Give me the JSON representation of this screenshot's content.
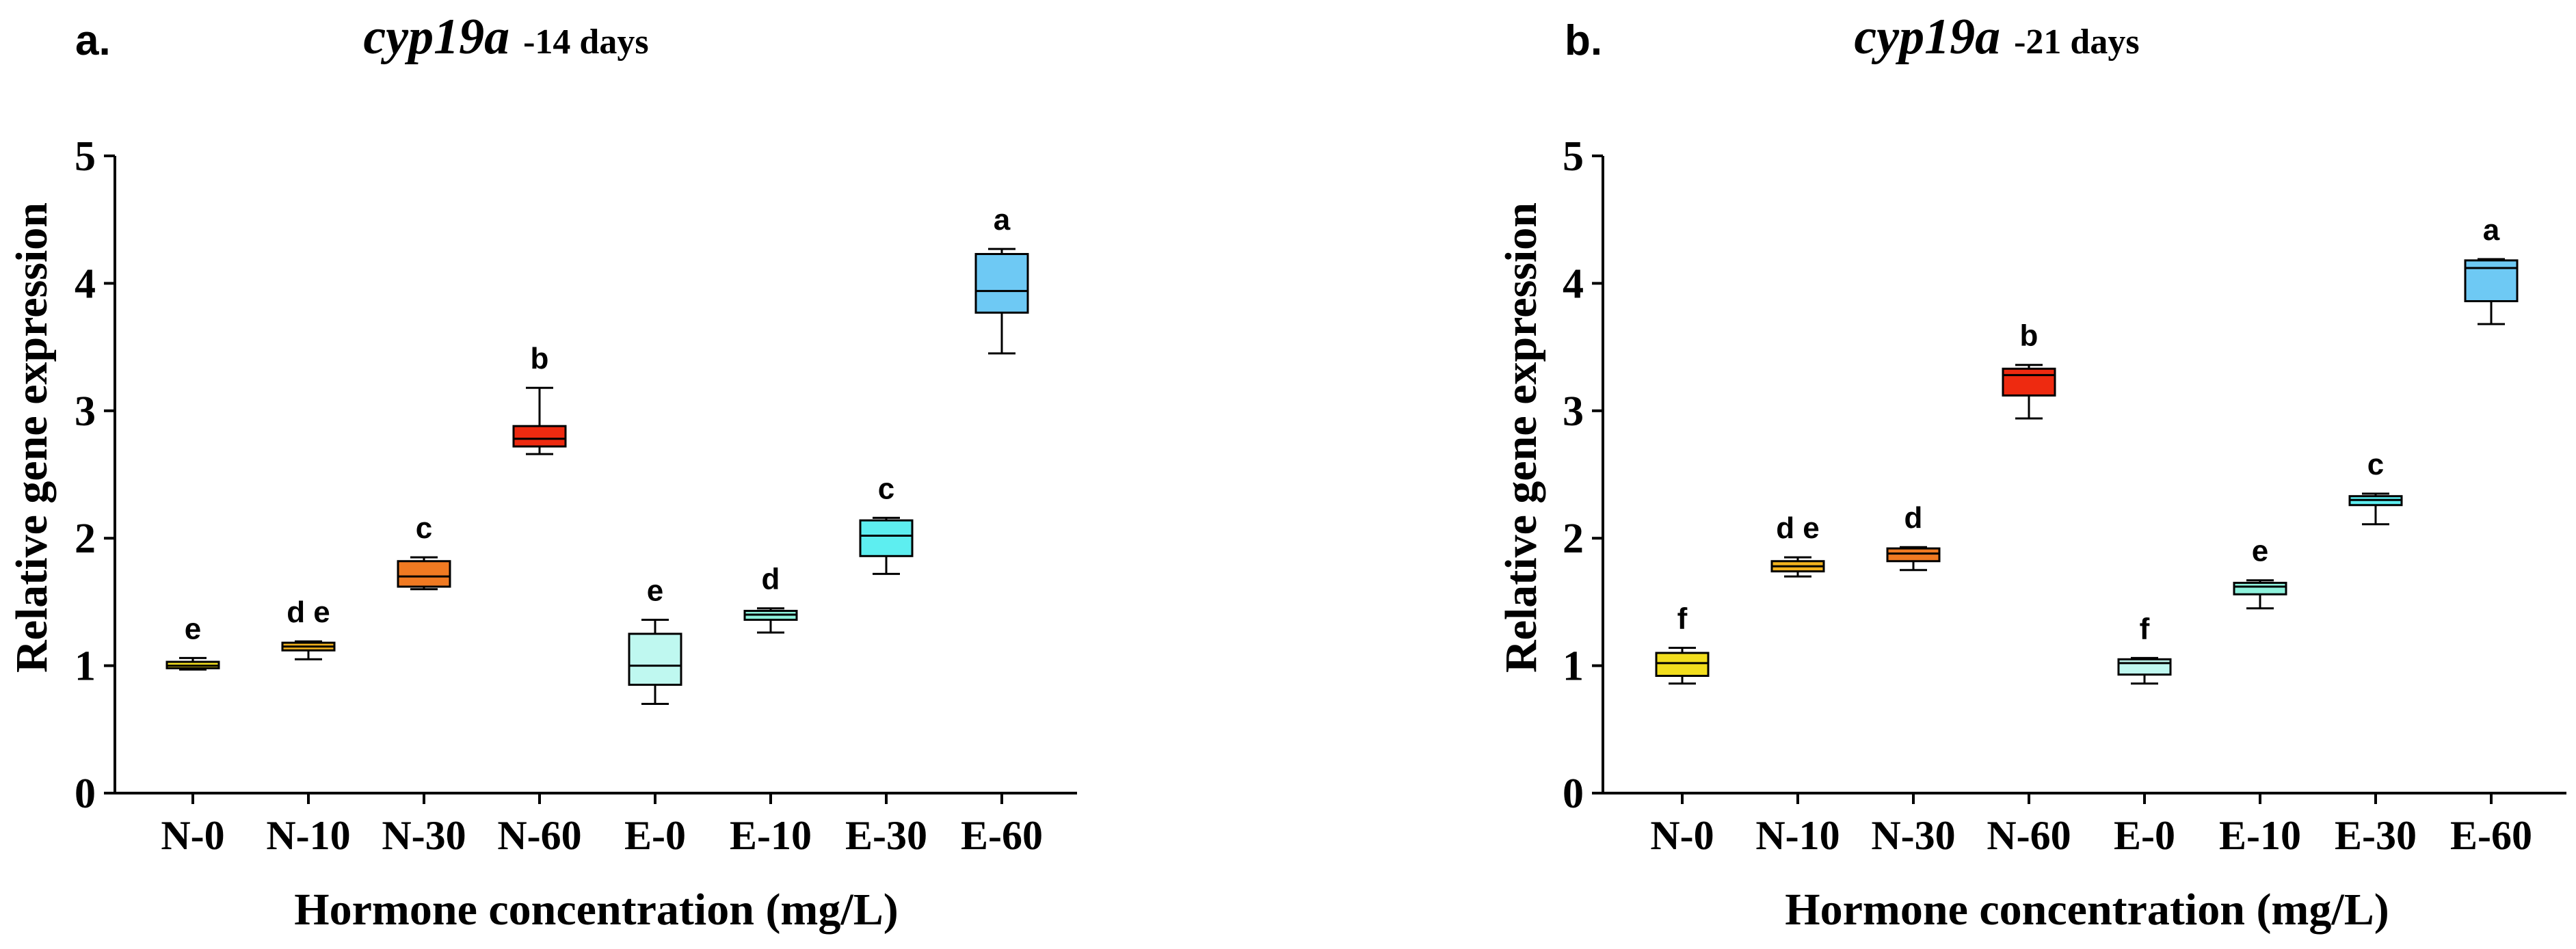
{
  "chart_data": [
    {
      "type": "box",
      "panel": "a.",
      "title": "cyp19a",
      "subtitle": "-14 days",
      "xlabel": "Hormone concentration (mg/L)",
      "ylabel": "Relative gene expression",
      "ylim": [
        0,
        5
      ],
      "yticks": [
        "0",
        "1",
        "2",
        "3",
        "4",
        "5"
      ],
      "categories": [
        "N-0",
        "N-10",
        "N-30",
        "N-60",
        "E-0",
        "E-10",
        "E-30",
        "E-60"
      ],
      "boxes": [
        {
          "category": "N-0",
          "min": 0.97,
          "q1": 0.98,
          "median": 1.0,
          "q3": 1.03,
          "max": 1.06,
          "color": "#f2de1e",
          "label": "e"
        },
        {
          "category": "N-10",
          "min": 1.05,
          "q1": 1.12,
          "median": 1.15,
          "q3": 1.18,
          "max": 1.19,
          "color": "#f2b21e",
          "label": "d e"
        },
        {
          "category": "N-30",
          "min": 1.6,
          "q1": 1.62,
          "median": 1.7,
          "q3": 1.82,
          "max": 1.85,
          "color": "#f07a22",
          "label": "c"
        },
        {
          "category": "N-60",
          "min": 2.66,
          "q1": 2.72,
          "median": 2.78,
          "q3": 2.88,
          "max": 3.18,
          "color": "#ee2a10",
          "label": "b"
        },
        {
          "category": "E-0",
          "min": 0.7,
          "q1": 0.85,
          "median": 1.0,
          "q3": 1.25,
          "max": 1.36,
          "color": "#bff8f0",
          "label": "e"
        },
        {
          "category": "E-10",
          "min": 1.26,
          "q1": 1.36,
          "median": 1.4,
          "q3": 1.43,
          "max": 1.45,
          "color": "#8ef2dc",
          "label": "d"
        },
        {
          "category": "E-30",
          "min": 1.72,
          "q1": 1.86,
          "median": 2.02,
          "q3": 2.14,
          "max": 2.16,
          "color": "#5deef0",
          "label": "c"
        },
        {
          "category": "E-60",
          "min": 3.45,
          "q1": 3.77,
          "median": 3.94,
          "q3": 4.23,
          "max": 4.27,
          "color": "#6ec9f4",
          "label": "a"
        }
      ]
    },
    {
      "type": "box",
      "panel": "b.",
      "title": "cyp19a",
      "subtitle": "-21 days",
      "xlabel": "Hormone concentration (mg/L)",
      "ylabel": "Relative gene expression",
      "ylim": [
        0,
        5
      ],
      "yticks": [
        "0",
        "1",
        "2",
        "3",
        "4",
        "5"
      ],
      "categories": [
        "N-0",
        "N-10",
        "N-30",
        "N-60",
        "E-0",
        "E-10",
        "E-30",
        "E-60"
      ],
      "boxes": [
        {
          "category": "N-0",
          "min": 0.86,
          "q1": 0.92,
          "median": 1.02,
          "q3": 1.1,
          "max": 1.14,
          "color": "#f2de1e",
          "label": "f"
        },
        {
          "category": "N-10",
          "min": 1.7,
          "q1": 1.74,
          "median": 1.78,
          "q3": 1.82,
          "max": 1.85,
          "color": "#f2b21e",
          "label": "d e"
        },
        {
          "category": "N-30",
          "min": 1.75,
          "q1": 1.82,
          "median": 1.88,
          "q3": 1.92,
          "max": 1.93,
          "color": "#f07a22",
          "label": "d"
        },
        {
          "category": "N-60",
          "min": 2.94,
          "q1": 3.12,
          "median": 3.28,
          "q3": 3.33,
          "max": 3.36,
          "color": "#ee2a10",
          "label": "b"
        },
        {
          "category": "E-0",
          "min": 0.86,
          "q1": 0.93,
          "median": 1.02,
          "q3": 1.05,
          "max": 1.06,
          "color": "#bff8f0",
          "label": "f"
        },
        {
          "category": "E-10",
          "min": 1.45,
          "q1": 1.56,
          "median": 1.62,
          "q3": 1.65,
          "max": 1.67,
          "color": "#8ef2dc",
          "label": "e"
        },
        {
          "category": "E-30",
          "min": 2.11,
          "q1": 2.26,
          "median": 2.3,
          "q3": 2.33,
          "max": 2.35,
          "color": "#5deef0",
          "label": "c"
        },
        {
          "category": "E-60",
          "min": 3.68,
          "q1": 3.86,
          "median": 4.12,
          "q3": 4.18,
          "max": 4.19,
          "color": "#6ec9f4",
          "label": "a"
        }
      ]
    }
  ]
}
